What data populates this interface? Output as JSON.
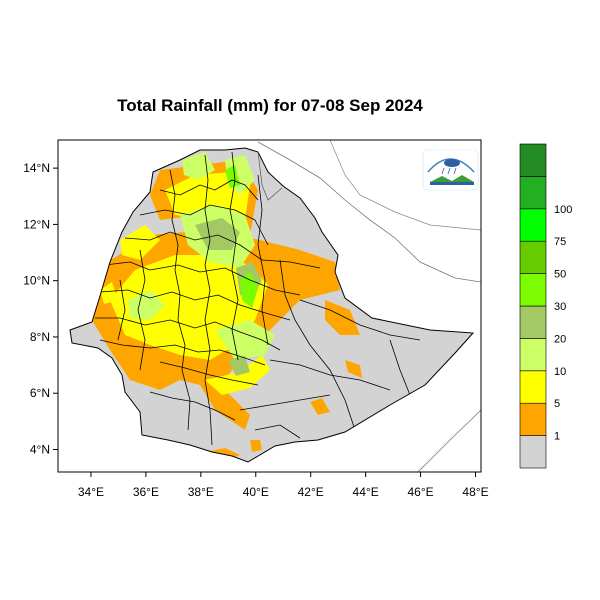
{
  "map": {
    "title": "Total Rainfall (mm) for 07-08 Sep 2024",
    "lon_ticks": [
      {
        "lon": 34,
        "label": "34°E"
      },
      {
        "lon": 36,
        "label": "36°E"
      },
      {
        "lon": 38,
        "label": "38°E"
      },
      {
        "lon": 40,
        "label": "40°E"
      },
      {
        "lon": 42,
        "label": "42°E"
      },
      {
        "lon": 44,
        "label": "44°E"
      },
      {
        "lon": 46,
        "label": "46°E"
      },
      {
        "lon": 48,
        "label": "48°E"
      }
    ],
    "lat_ticks": [
      {
        "lat": 14,
        "label": "14°N"
      },
      {
        "lat": 12,
        "label": "12°N"
      },
      {
        "lat": 10,
        "label": "10°N"
      },
      {
        "lat": 8,
        "label": "8°N"
      },
      {
        "lat": 6,
        "label": "6°N"
      },
      {
        "lat": 4,
        "label": "4°N"
      }
    ],
    "lon_range": [
      32.8,
      48.2
    ],
    "lat_range": [
      3.2,
      15.0
    ]
  },
  "legend": {
    "colors": [
      "#d3d3d3",
      "#ffa500",
      "#ffff00",
      "#ccff66",
      "#a3c964",
      "#7cfc00",
      "#66cc00",
      "#00ff00",
      "#22b022",
      "#238b23"
    ],
    "labels": [
      "1",
      "5",
      "10",
      "20",
      "30",
      "50",
      "75",
      "100"
    ]
  },
  "colors": {
    "no_rain": "#d3d3d3",
    "r1_5": "#ffa500",
    "r5_10": "#ffff00",
    "r10_20": "#ccff66",
    "r20_30": "#a3c964",
    "r30_50": "#7cfc00"
  }
}
